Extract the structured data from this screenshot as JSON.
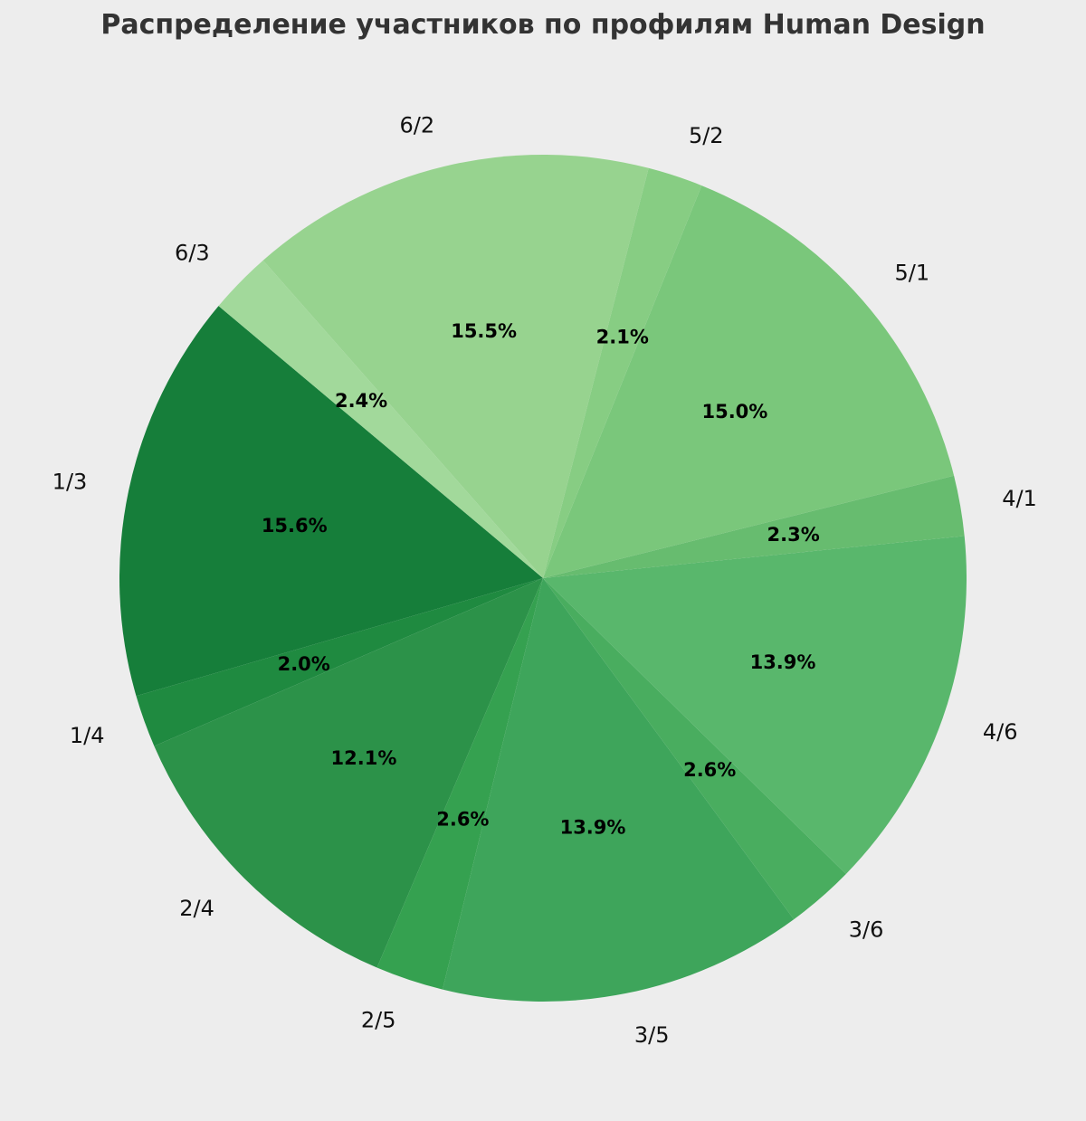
{
  "chart_data": {
    "type": "pie",
    "title": "Распределение участников по профилям Human Design",
    "categories": [
      "1/3",
      "1/4",
      "2/4",
      "2/5",
      "3/5",
      "3/6",
      "4/6",
      "4/1",
      "5/1",
      "5/2",
      "6/2",
      "6/3"
    ],
    "values": [
      15.6,
      2.0,
      12.1,
      2.6,
      13.9,
      2.6,
      13.9,
      2.3,
      15.0,
      2.1,
      15.5,
      2.4
    ],
    "value_labels": [
      "15.6%",
      "2.0%",
      "12.1%",
      "2.6%",
      "13.9%",
      "2.6%",
      "13.9%",
      "2.3%",
      "15.0%",
      "2.1%",
      "15.5%",
      "2.4%"
    ],
    "colors": [
      "#167e3a",
      "#1f8a40",
      "#2c9249",
      "#35a150",
      "#3ea55b",
      "#49ad5f",
      "#59b76c",
      "#67bc6f",
      "#7ac77b",
      "#87cd83",
      "#97d38f",
      "#a2d99b"
    ],
    "start_angle_deg": 140,
    "direction": "counterclockwise",
    "legend": "none"
  }
}
